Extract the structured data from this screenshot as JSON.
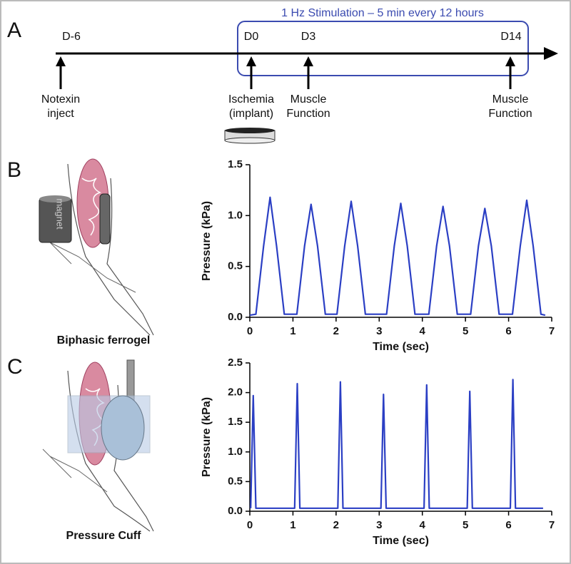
{
  "timeline": {
    "label": "A",
    "banner": "1 Hz Stimulation – 5 min every 12 hours",
    "points": [
      {
        "day": "D-6",
        "event": [
          "Notexin",
          "inject"
        ]
      },
      {
        "day": "D0",
        "event": [
          "Ischemia",
          "(implant)"
        ]
      },
      {
        "day": "D3",
        "event": [
          "Muscle",
          "Function"
        ]
      },
      {
        "day": "D14",
        "event": [
          "Muscle",
          "Function"
        ]
      }
    ]
  },
  "panels": [
    {
      "label": "B",
      "caption": "Biphasic ferrogel",
      "device": "magnet"
    },
    {
      "label": "C",
      "caption": "Pressure Cuff"
    }
  ],
  "chart_data": [
    {
      "type": "line",
      "xlabel": "Time (sec)",
      "ylabel": "Pressure (kPa)",
      "color": "#2b3fc4",
      "x": [
        0,
        0.14,
        0.32,
        0.47,
        0.62,
        0.8,
        1.09,
        1.27,
        1.42,
        1.57,
        1.75,
        2.02,
        2.2,
        2.35,
        2.5,
        2.68,
        3.17,
        3.35,
        3.5,
        3.65,
        3.83,
        4.15,
        4.33,
        4.48,
        4.63,
        4.81,
        5.12,
        5.3,
        5.45,
        5.6,
        5.78,
        6.09,
        6.27,
        6.42,
        6.57,
        6.75,
        6.85
      ],
      "values": [
        0.02,
        0.03,
        0.7,
        1.18,
        0.7,
        0.03,
        0.03,
        0.7,
        1.11,
        0.7,
        0.03,
        0.03,
        0.7,
        1.14,
        0.7,
        0.03,
        0.03,
        0.7,
        1.12,
        0.7,
        0.03,
        0.03,
        0.7,
        1.09,
        0.7,
        0.03,
        0.03,
        0.7,
        1.07,
        0.7,
        0.03,
        0.03,
        0.7,
        1.15,
        0.7,
        0.03,
        0.02
      ],
      "xlim": [
        0,
        7
      ],
      "xticks": [
        0,
        1,
        2,
        3,
        4,
        5,
        6,
        7
      ],
      "ylim": [
        0,
        1.5
      ],
      "yticks": [
        {
          "value": 0,
          "label": "0.0"
        },
        {
          "value": 0.5,
          "label": "0.5"
        },
        {
          "value": 1,
          "label": "1.0"
        },
        {
          "value": 1.5,
          "label": "1.5"
        }
      ]
    },
    {
      "type": "line",
      "xlabel": "Time (sec)",
      "ylabel": "Pressure (kPa)",
      "color": "#2b3fc4",
      "x": [
        0.02,
        0.08,
        0.14,
        1.04,
        1.1,
        1.16,
        2.04,
        2.1,
        2.16,
        3.04,
        3.1,
        3.16,
        4.04,
        4.1,
        4.16,
        5.04,
        5.1,
        5.16,
        6.04,
        6.1,
        6.16,
        6.8
      ],
      "values": [
        0.05,
        1.95,
        0.05,
        0.05,
        2.15,
        0.05,
        0.05,
        2.18,
        0.05,
        0.05,
        1.97,
        0.05,
        0.05,
        2.13,
        0.05,
        0.05,
        2.02,
        0.05,
        0.05,
        2.22,
        0.05,
        0.05
      ],
      "xlim": [
        0,
        7
      ],
      "xticks": [
        0,
        1,
        2,
        3,
        4,
        5,
        6,
        7
      ],
      "ylim": [
        0,
        2.5
      ],
      "yticks": [
        {
          "value": 0,
          "label": "0.0"
        },
        {
          "value": 0.5,
          "label": "0.5"
        },
        {
          "value": 1,
          "label": "1.0"
        },
        {
          "value": 1.5,
          "label": "1.5"
        },
        {
          "value": 2,
          "label": "2.0"
        },
        {
          "value": 2.5,
          "label": "2.5"
        }
      ]
    }
  ]
}
